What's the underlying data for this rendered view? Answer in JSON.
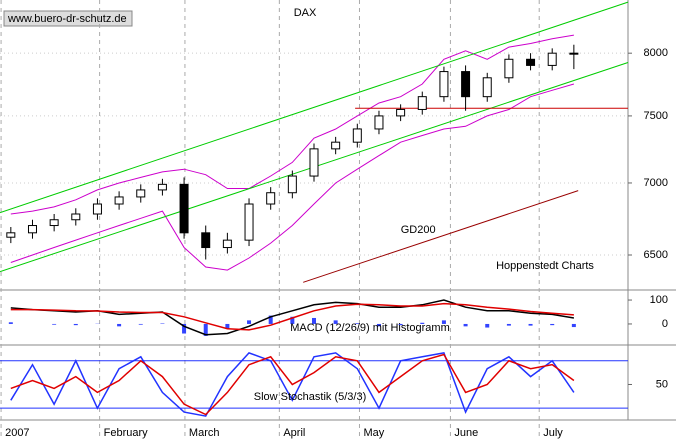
{
  "chart_data": [
    {
      "type": "candlestick",
      "title": "DAX",
      "watermark": "www.buero-dr-schutz.de",
      "source": "Hoppenstedt Charts",
      "log_scale": true,
      "grid": true,
      "color_up": "#ffffff",
      "color_down": "#000000",
      "x": [
        0,
        1,
        2,
        3,
        4,
        5,
        6,
        7,
        8,
        9,
        10,
        11,
        12,
        13,
        14,
        15,
        16,
        17,
        18,
        19,
        20,
        21,
        22,
        23,
        24,
        25,
        26
      ],
      "open": [
        6620,
        6650,
        6700,
        6740,
        6780,
        6850,
        6900,
        6950,
        6990,
        6650,
        6550,
        6600,
        6850,
        6930,
        7050,
        7250,
        7300,
        7400,
        7500,
        7550,
        7650,
        7850,
        7650,
        7800,
        7950,
        7900,
        8000
      ],
      "high": [
        6690,
        6740,
        6780,
        6820,
        6890,
        6940,
        6990,
        7030,
        7040,
        6700,
        6650,
        6890,
        6970,
        7090,
        7290,
        7340,
        7440,
        7540,
        7590,
        7690,
        7890,
        7900,
        7840,
        7990,
        8000,
        8040,
        8070
      ],
      "low": [
        6580,
        6610,
        6660,
        6700,
        6740,
        6810,
        6860,
        6910,
        6610,
        6470,
        6510,
        6560,
        6810,
        6890,
        7010,
        7210,
        7260,
        7360,
        7460,
        7510,
        7610,
        7540,
        7610,
        7760,
        7860,
        7860,
        7870
      ],
      "close": [
        6650,
        6700,
        6740,
        6780,
        6850,
        6900,
        6950,
        6990,
        6650,
        6550,
        6600,
        6850,
        6930,
        7050,
        7250,
        7300,
        7400,
        7500,
        7550,
        7650,
        7850,
        7650,
        7800,
        7950,
        7900,
        8000,
        8000
      ],
      "bands": {
        "color": "#cc00cc",
        "upper": [
          6780,
          6800,
          6830,
          6880,
          6950,
          7000,
          7040,
          7080,
          7100,
          7060,
          6960,
          6960,
          7050,
          7150,
          7330,
          7400,
          7500,
          7600,
          7650,
          7750,
          7950,
          8020,
          7950,
          8050,
          8080,
          8120,
          8150
        ],
        "lower": [
          6450,
          6500,
          6550,
          6600,
          6650,
          6700,
          6750,
          6800,
          6550,
          6420,
          6400,
          6480,
          6580,
          6700,
          6850,
          7000,
          7100,
          7200,
          7300,
          7350,
          7400,
          7420,
          7500,
          7550,
          7650,
          7700,
          7750
        ]
      },
      "lines": [
        {
          "label": "GD200",
          "color": "#990000",
          "x": [
            13.5,
            26.2
          ],
          "values": [
            6320,
            6945
          ]
        },
        {
          "color": "#00cc00",
          "x": [
            -0.5,
            28.5
          ],
          "values": [
            6790,
            8432
          ]
        },
        {
          "color": "#00cc00",
          "x": [
            -0.5,
            28.5
          ],
          "values": [
            6390,
            7924
          ]
        },
        {
          "color": "#cc0000",
          "x": [
            15.9,
            28.5
          ],
          "values": [
            7560,
            7560
          ]
        }
      ],
      "ylim": [
        6270,
        8450
      ],
      "yticks": [
        6500,
        7000,
        7500,
        8000
      ],
      "xlim": [
        -0.5,
        28.5
      ],
      "xticks": [
        {
          "value": -0.45,
          "label": "2007"
        },
        {
          "value": 4.1,
          "label": "February"
        },
        {
          "value": 8.04,
          "label": "March"
        },
        {
          "value": 12.4,
          "label": "April"
        },
        {
          "value": 16.1,
          "label": "May"
        },
        {
          "value": 20.3,
          "label": "June"
        },
        {
          "value": 24.4,
          "label": "July"
        }
      ]
    },
    {
      "type": "line",
      "title": "MACD (12/26/9) mit Histogramm",
      "series": [
        {
          "color": "#000000",
          "values": [
            67,
            60,
            55,
            50,
            55,
            40,
            45,
            50,
            -10,
            -45,
            -40,
            -10,
            30,
            55,
            80,
            90,
            85,
            70,
            70,
            80,
            100,
            70,
            55,
            55,
            45,
            40,
            25
          ]
        },
        {
          "color": "#e00000",
          "values": [
            60,
            60,
            58,
            55,
            54,
            50,
            48,
            48,
            30,
            5,
            -20,
            -25,
            -5,
            25,
            55,
            75,
            82,
            80,
            75,
            75,
            85,
            80,
            70,
            62,
            52,
            45,
            38
          ]
        }
      ],
      "histogram": {
        "color": "#3344ff",
        "values": [
          7,
          0,
          -3,
          -5,
          1,
          -10,
          -3,
          2,
          -40,
          -50,
          -20,
          15,
          35,
          30,
          25,
          15,
          3,
          -10,
          -5,
          5,
          15,
          -10,
          -15,
          -7,
          -7,
          -5,
          -13
        ]
      },
      "ylim": [
        -88,
        142
      ],
      "yticks": [
        0,
        100
      ]
    },
    {
      "type": "line",
      "title": "Slow Stochastik (5/3/3)",
      "series": [
        {
          "color": "#2233ff",
          "values": [
            30,
            75,
            25,
            80,
            20,
            70,
            85,
            40,
            15,
            10,
            60,
            90,
            80,
            30,
            85,
            90,
            70,
            20,
            80,
            85,
            90,
            15,
            70,
            85,
            60,
            80,
            40
          ]
        },
        {
          "color": "#e00000",
          "values": [
            45,
            55,
            45,
            60,
            40,
            55,
            80,
            60,
            25,
            12,
            40,
            75,
            85,
            50,
            65,
            85,
            80,
            40,
            60,
            80,
            88,
            40,
            50,
            80,
            70,
            75,
            55
          ]
        }
      ],
      "levels": {
        "color": "#2233ff",
        "values": [
          20,
          80
        ]
      },
      "ylim": [
        5,
        100
      ],
      "yticks": [
        50
      ]
    }
  ]
}
